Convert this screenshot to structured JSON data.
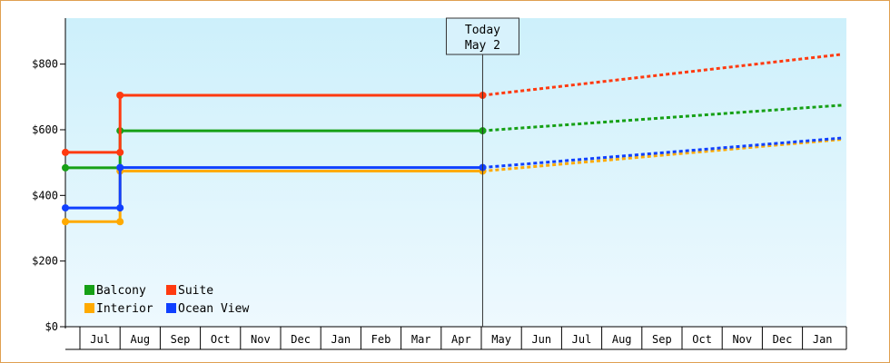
{
  "chart_data": {
    "type": "line",
    "step": true,
    "x_labels": [
      "Jul",
      "Aug",
      "Sep",
      "Oct",
      "Nov",
      "Dec",
      "Jan",
      "Feb",
      "Mar",
      "Apr",
      "May",
      "Jun",
      "Jul",
      "Aug",
      "Sep",
      "Oct",
      "Nov",
      "Dec",
      "Jan"
    ],
    "y_ticks": [
      "$0",
      "$200",
      "$400",
      "$600",
      "$800"
    ],
    "ylim": [
      0,
      940
    ],
    "today_marker": {
      "line1": "Today",
      "line2": "May 2"
    },
    "series": [
      {
        "name": "Balcony",
        "color": "#16a016",
        "actual": [
          [
            "Jun 15",
            484
          ],
          [
            "Aug 1",
            484
          ],
          [
            "Aug 1",
            597
          ],
          [
            "May 2",
            597
          ]
        ],
        "forecast": [
          [
            "May 2",
            597
          ],
          [
            "Feb 1",
            675
          ]
        ]
      },
      {
        "name": "Suite",
        "color": "#ff3a10",
        "actual": [
          [
            "Jun 15",
            531
          ],
          [
            "Aug 1",
            531
          ],
          [
            "Aug 1",
            705
          ],
          [
            "May 2",
            705
          ]
        ],
        "forecast": [
          [
            "May 2",
            705
          ],
          [
            "Feb 1",
            830
          ]
        ]
      },
      {
        "name": "Interior",
        "color": "#ffaa00",
        "actual": [
          [
            "Jun 15",
            320
          ],
          [
            "Aug 1",
            320
          ],
          [
            "Aug 1",
            474
          ],
          [
            "May 2",
            474
          ]
        ],
        "forecast": [
          [
            "May 2",
            474
          ],
          [
            "Feb 1",
            571
          ]
        ]
      },
      {
        "name": "Ocean View",
        "color": "#1040ff",
        "actual": [
          [
            "Jun 15",
            362
          ],
          [
            "Aug 1",
            362
          ],
          [
            "Aug 1",
            485
          ],
          [
            "May 2",
            485
          ]
        ],
        "forecast": [
          [
            "May 2",
            485
          ],
          [
            "Feb 1",
            575
          ]
        ]
      }
    ],
    "grid": false,
    "legend": "bottom-left"
  },
  "colors": {
    "plot_top": "#cdf0fb",
    "plot_bottom": "#eef9fe",
    "frame": "#e0a050"
  }
}
